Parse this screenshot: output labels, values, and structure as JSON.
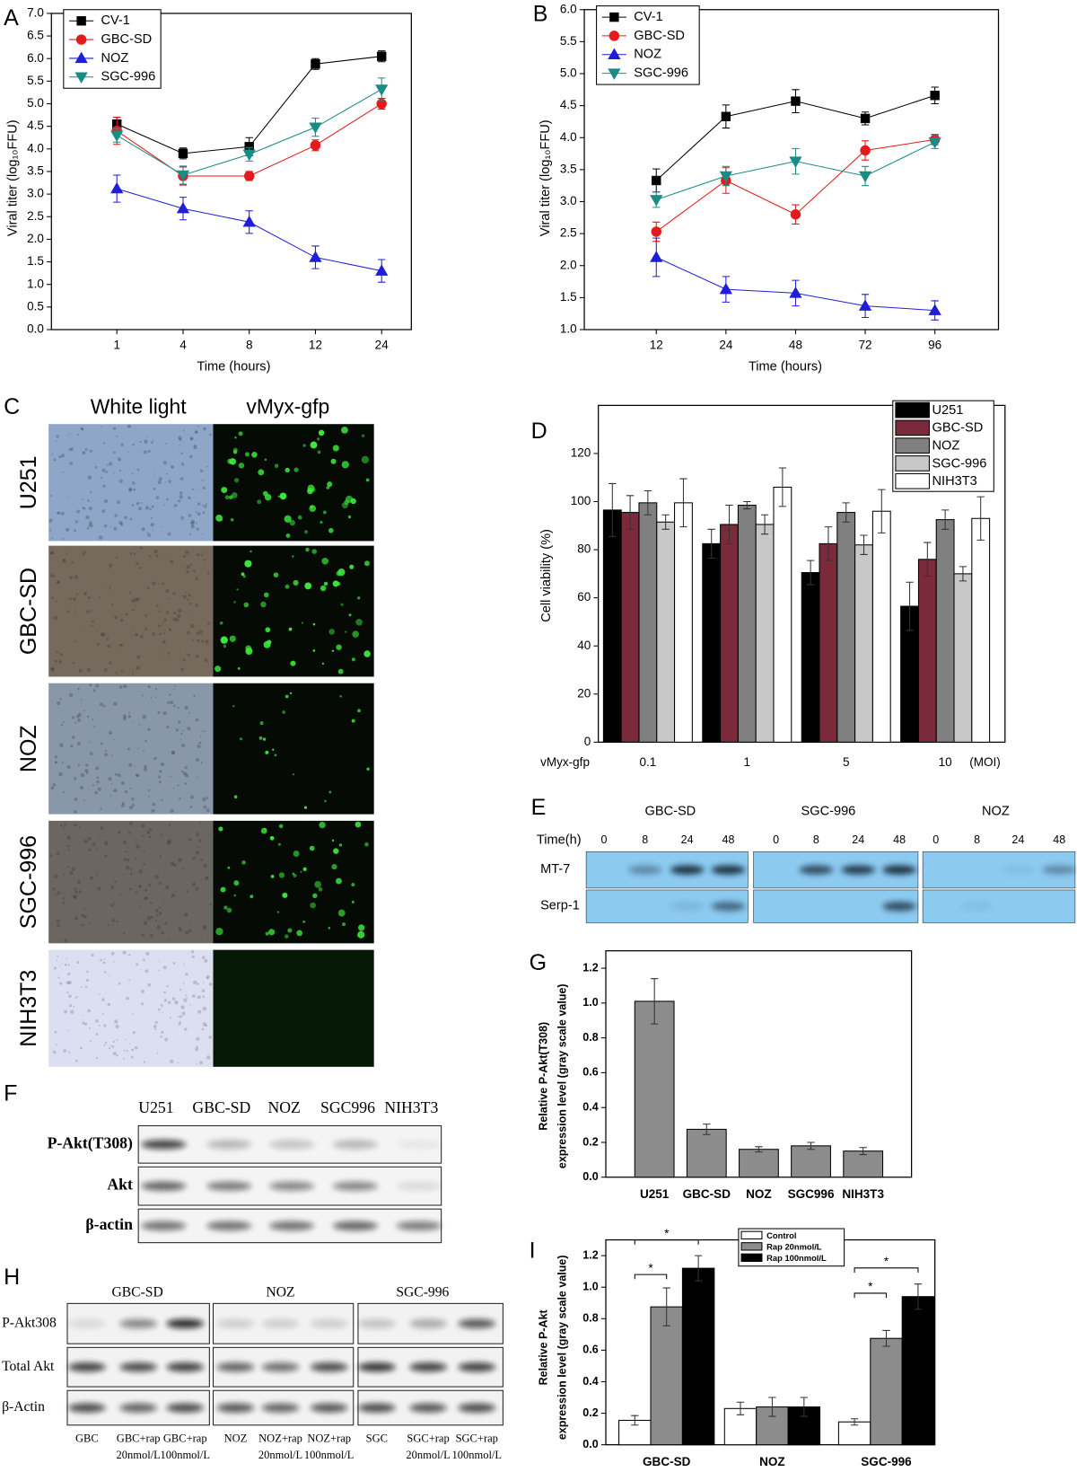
{
  "chart_data": [
    {
      "type": "line",
      "panel": "A",
      "xlabel": "Time (hours)",
      "ylabel": "Viral titer (log₁₀FFU)",
      "categories": [
        "1",
        "4",
        "8",
        "12",
        "24"
      ],
      "ylim": [
        0,
        7
      ],
      "yticks": [
        {
          "value": 0,
          "label": "0.0"
        },
        {
          "value": 0.5,
          "label": "0.5"
        },
        {
          "value": 1,
          "label": "1.0"
        },
        {
          "value": 1.5,
          "label": "1.5"
        },
        {
          "value": 2,
          "label": "2.0"
        },
        {
          "value": 2.5,
          "label": "2.5"
        },
        {
          "value": 3,
          "label": "3.0"
        },
        {
          "value": 3.5,
          "label": "3.5"
        },
        {
          "value": 4,
          "label": "4.0"
        },
        {
          "value": 4.5,
          "label": "4.5"
        },
        {
          "value": 5,
          "label": "5.0"
        },
        {
          "value": 5.5,
          "label": "5.5"
        },
        {
          "value": 6,
          "label": "6.0"
        },
        {
          "value": 6.5,
          "label": "6.5"
        },
        {
          "value": 7,
          "label": "7.0"
        }
      ],
      "legend": "top-left",
      "series": [
        {
          "name": "CV-1",
          "color": "#000000",
          "marker": "square",
          "values": [
            4.55,
            3.9,
            4.05,
            5.88,
            6.05
          ],
          "errors": [
            0.15,
            0.12,
            0.2,
            0.12,
            0.12
          ]
        },
        {
          "name": "GBC-SD",
          "color": "#e41a1c",
          "marker": "circle",
          "values": [
            4.4,
            3.4,
            3.4,
            4.08,
            5.0
          ],
          "errors": [
            0.3,
            0.2,
            0.1,
            0.12,
            0.12
          ]
        },
        {
          "name": "NOZ",
          "color": "#1f1fd8",
          "marker": "triangle-up",
          "values": [
            3.12,
            2.68,
            2.38,
            1.6,
            1.3
          ],
          "errors": [
            0.3,
            0.25,
            0.25,
            0.25,
            0.25
          ]
        },
        {
          "name": "SGC-996",
          "color": "#1a8c86",
          "marker": "triangle-down",
          "values": [
            4.3,
            3.42,
            3.88,
            4.48,
            5.32
          ],
          "errors": [
            0.15,
            0.2,
            0.15,
            0.2,
            0.25
          ]
        }
      ]
    },
    {
      "type": "line",
      "panel": "B",
      "xlabel": "Time (hours)",
      "ylabel": "Viral titer (log₁₀FFU)",
      "categories": [
        "12",
        "24",
        "48",
        "72",
        "96"
      ],
      "ylim": [
        1,
        6
      ],
      "yticks": [
        {
          "value": 1,
          "label": "1.0"
        },
        {
          "value": 1.5,
          "label": "1.5"
        },
        {
          "value": 2,
          "label": "2.0"
        },
        {
          "value": 2.5,
          "label": "2.5"
        },
        {
          "value": 3,
          "label": "3.0"
        },
        {
          "value": 3.5,
          "label": "3.5"
        },
        {
          "value": 4,
          "label": "4.0"
        },
        {
          "value": 4.5,
          "label": "4.5"
        },
        {
          "value": 5,
          "label": "5.0"
        },
        {
          "value": 5.5,
          "label": "5.5"
        },
        {
          "value": 6,
          "label": "6.0"
        }
      ],
      "legend": "top-left",
      "series": [
        {
          "name": "CV-1",
          "color": "#000000",
          "marker": "square",
          "values": [
            3.33,
            4.33,
            4.57,
            4.3,
            4.66
          ],
          "errors": [
            0.18,
            0.18,
            0.18,
            0.1,
            0.13
          ]
        },
        {
          "name": "GBC-SD",
          "color": "#e41a1c",
          "marker": "circle",
          "values": [
            2.53,
            3.33,
            2.8,
            3.8,
            3.97
          ],
          "errors": [
            0.15,
            0.2,
            0.15,
            0.15,
            0.08
          ]
        },
        {
          "name": "NOZ",
          "color": "#1f1fd8",
          "marker": "triangle-up",
          "values": [
            2.13,
            1.63,
            1.57,
            1.37,
            1.3
          ],
          "errors": [
            0.3,
            0.2,
            0.2,
            0.18,
            0.15
          ]
        },
        {
          "name": "SGC-996",
          "color": "#1a8c86",
          "marker": "triangle-down",
          "values": [
            3.03,
            3.4,
            3.63,
            3.4,
            3.93
          ],
          "errors": [
            0.12,
            0.15,
            0.2,
            0.15,
            0.1
          ]
        }
      ]
    },
    {
      "type": "bar",
      "panel": "D",
      "ylabel": "Cell viability (%)",
      "x_prefix": "vMyx-gfp",
      "x_unit": "(MOI)",
      "categories": [
        "0.1",
        "1",
        "5",
        "10"
      ],
      "ylim": [
        0,
        140
      ],
      "yticks": [
        0,
        20,
        40,
        60,
        80,
        100,
        120
      ],
      "legend": "top-right",
      "series": [
        {
          "name": "U251",
          "color": "#000000",
          "values": [
            96.5,
            82.5,
            70.5,
            56.5
          ],
          "errors": [
            11,
            6,
            5,
            10
          ]
        },
        {
          "name": "GBC-SD",
          "color": "#7b2a3c",
          "values": [
            95.5,
            90.5,
            82.5,
            76
          ],
          "errors": [
            7,
            8,
            7,
            7
          ]
        },
        {
          "name": "NOZ",
          "color": "#808080",
          "values": [
            99.5,
            98.5,
            95.5,
            92.5
          ],
          "errors": [
            5,
            1.5,
            4,
            4
          ]
        },
        {
          "name": "SGC-996",
          "color": "#c8c8c8",
          "values": [
            91.5,
            90.5,
            82,
            70
          ],
          "errors": [
            3,
            4,
            4,
            3
          ]
        },
        {
          "name": "NIH3T3",
          "color": "#ffffff",
          "values": [
            99.5,
            106,
            96,
            93
          ],
          "errors": [
            10,
            8,
            9,
            9
          ]
        }
      ]
    },
    {
      "type": "bar",
      "panel": "G",
      "ylabel": [
        "Relative P-Akt(T308)",
        "expression level (gray scale value)"
      ],
      "categories": [
        "U251",
        "GBC-SD",
        "NOZ",
        "SGC996",
        "NIH3T3"
      ],
      "values": [
        1.01,
        0.275,
        0.16,
        0.18,
        0.15
      ],
      "errors": [
        0.13,
        0.03,
        0.015,
        0.02,
        0.02
      ],
      "color": "#8c8c8c",
      "ylim": [
        0,
        1.3
      ],
      "yticks": [
        {
          "value": 0,
          "label": "0.0"
        },
        {
          "value": 0.2,
          "label": "0.2"
        },
        {
          "value": 0.4,
          "label": "0.4"
        },
        {
          "value": 0.6,
          "label": "0.6"
        },
        {
          "value": 0.8,
          "label": "0.8"
        },
        {
          "value": 1,
          "label": "1.0"
        },
        {
          "value": 1.2,
          "label": "1.2"
        }
      ]
    },
    {
      "type": "bar",
      "panel": "I",
      "ylabel": [
        "Relative  P-Akt",
        "expression level (gray scale value)"
      ],
      "categories": [
        "GBC-SD",
        "NOZ",
        "SGC-996"
      ],
      "ylim": [
        0,
        1.3
      ],
      "yticks": [
        {
          "value": 0,
          "label": "0.0"
        },
        {
          "value": 0.2,
          "label": "0.2"
        },
        {
          "value": 0.4,
          "label": "0.4"
        },
        {
          "value": 0.6,
          "label": "0.6"
        },
        {
          "value": 0.8,
          "label": "0.8"
        },
        {
          "value": 1,
          "label": "1.0"
        },
        {
          "value": 1.2,
          "label": "1.2"
        }
      ],
      "legend": "top",
      "annotations": [
        "*",
        "*",
        "*",
        "*"
      ],
      "series": [
        {
          "name": "Control",
          "color": "#ffffff",
          "values": [
            0.155,
            0.23,
            0.145
          ],
          "errors": [
            0.03,
            0.04,
            0.02
          ]
        },
        {
          "name": "Rap 20nmol/L",
          "color": "#8c8c8c",
          "values": [
            0.875,
            0.24,
            0.675
          ],
          "errors": [
            0.12,
            0.06,
            0.05
          ]
        },
        {
          "name": "Rap 100nmol/L",
          "color": "#000000",
          "values": [
            1.12,
            0.24,
            0.94
          ],
          "errors": [
            0.08,
            0.06,
            0.08
          ]
        }
      ]
    }
  ],
  "panel_c": {
    "label": "C",
    "columns": [
      "White light",
      "vMyx-gfp"
    ],
    "rows": [
      "U251",
      "GBC-SD",
      "NOZ",
      "SGC-996",
      "NIH3T3"
    ]
  },
  "panel_e": {
    "label": "E",
    "groups": [
      "GBC-SD",
      "SGC-996",
      "NOZ"
    ],
    "time_label": "Time(h)",
    "times": [
      [
        "0",
        "8",
        "24",
        "48"
      ],
      [
        "0",
        "8",
        "24",
        "48"
      ],
      [
        "0",
        "8",
        "24",
        "48"
      ]
    ],
    "rows": [
      "MT-7",
      "Serp-1"
    ]
  },
  "panel_f": {
    "label": "F",
    "lanes": [
      "U251",
      "GBC-SD",
      "NOZ",
      "SGC996",
      "NIH3T3"
    ],
    "rows": [
      "P-Akt(T308)",
      "Akt",
      "β-actin"
    ]
  },
  "panel_h": {
    "label": "H",
    "groups": [
      "GBC-SD",
      "NOZ",
      "SGC-996"
    ],
    "rows": [
      "P-Akt308",
      "Total Akt",
      "β-Actin"
    ],
    "lanes": [
      [
        "GBC"
      ],
      [
        "GBC+rap",
        "20nmol/L"
      ],
      [
        "GBC+rap",
        "100nmol/L"
      ],
      [
        "NOZ"
      ],
      [
        "NOZ+rap",
        "20nmol/L"
      ],
      [
        "NOZ+rap",
        "100nmol/L"
      ],
      [
        "SGC"
      ],
      [
        "SGC+rap",
        "20nmol/L"
      ],
      [
        "SGC+rap",
        "100nmol/L"
      ]
    ]
  }
}
